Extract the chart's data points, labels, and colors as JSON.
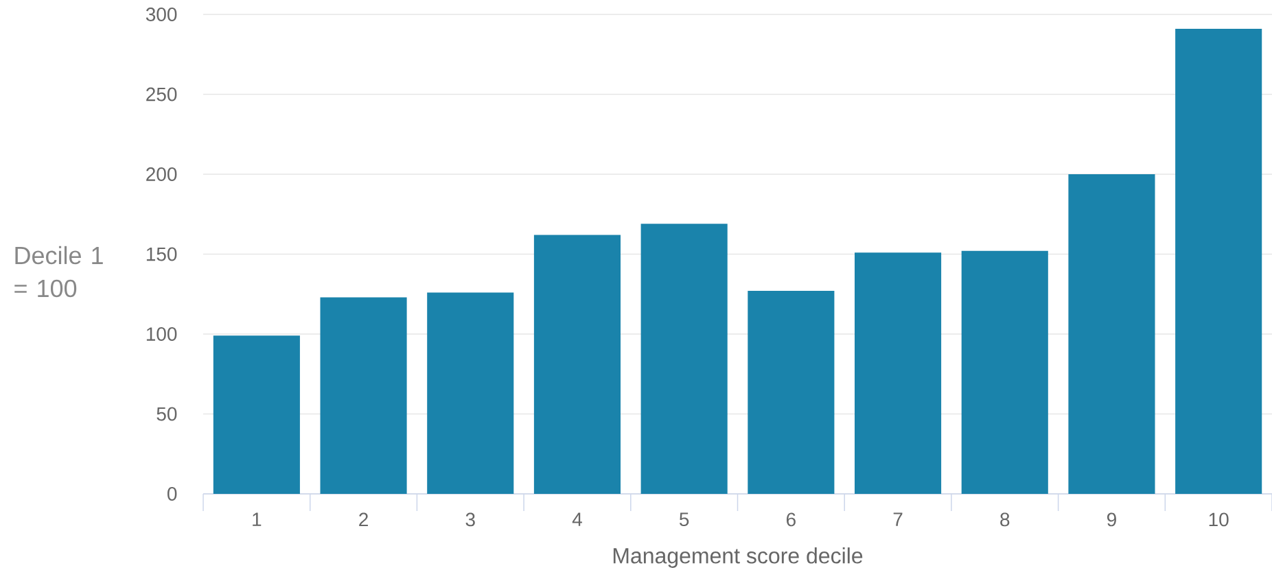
{
  "chart_data": {
    "type": "bar",
    "xlabel": "Management score decile",
    "ylabel": "Decile 1 = 100",
    "categories": [
      "1",
      "2",
      "3",
      "4",
      "5",
      "6",
      "7",
      "8",
      "9",
      "10"
    ],
    "values": [
      99,
      123,
      126,
      162,
      169,
      127,
      151,
      152,
      200,
      291
    ],
    "color": "#1a83ab",
    "ylim": [
      0,
      300
    ],
    "yticks": [
      0,
      50,
      100,
      150,
      200,
      250,
      300
    ],
    "grid": "y"
  }
}
